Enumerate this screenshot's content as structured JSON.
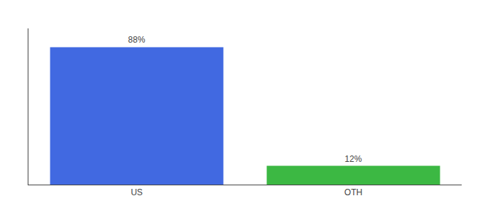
{
  "chart_data": {
    "type": "bar",
    "categories": [
      "US",
      "OTH"
    ],
    "values": [
      88,
      12
    ],
    "value_labels": [
      "88%",
      "12%"
    ],
    "data_labels": true,
    "colors": [
      "#4169e1",
      "#3cb843"
    ],
    "ylim": [
      0,
      100
    ],
    "yticks": [],
    "grid": false,
    "tick_labels": "x"
  }
}
